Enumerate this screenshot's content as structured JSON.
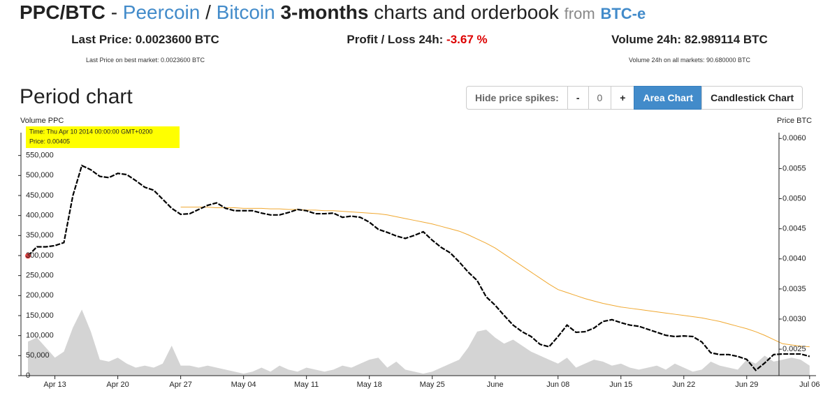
{
  "header": {
    "pair": "PPC/BTC",
    "sep1": "-",
    "coin": "Peercoin",
    "sep2": "/",
    "base": "Bitcoin",
    "period": "3-months",
    "rest": "charts and orderbook",
    "from": "from",
    "exchange": "BTC-e"
  },
  "stats": [
    {
      "label": "Last Price:",
      "value": "0.0023600 BTC",
      "note": "Last Price on best market: 0.0023600 BTC"
    },
    {
      "label": "Profit / Loss 24h:",
      "value": "-3.67 %"
    },
    {
      "label": "Volume 24h:",
      "value": "82.989114 BTC",
      "note": "Volume 24h on all markets: 90.680000 BTC"
    }
  ],
  "section_title": "Period chart",
  "controls": {
    "spikes_label": "Hide price spikes:",
    "minus": "-",
    "spikes_value": "0",
    "plus": "+",
    "area": "Area Chart",
    "candle": "Candlestick Chart"
  },
  "chart_data": {
    "type": "area",
    "y_label": "Volume PPC",
    "y2_label": "Price BTC",
    "tooltip": {
      "time": "Time: Thu Apr 10 2014 00:00:00 GMT+0200",
      "price": "Price: 0.00405"
    },
    "x": [
      "Apr 10",
      "Apr 11",
      "Apr 12",
      "Apr 13",
      "Apr 14",
      "Apr 15",
      "Apr 16",
      "Apr 17",
      "Apr 18",
      "Apr 19",
      "Apr 20",
      "Apr 21",
      "Apr 22",
      "Apr 23",
      "Apr 24",
      "Apr 25",
      "Apr 26",
      "Apr 27",
      "Apr 28",
      "Apr 29",
      "Apr 30",
      "May 01",
      "May 02",
      "May 03",
      "May 04",
      "May 05",
      "May 06",
      "May 07",
      "May 08",
      "May 09",
      "May 10",
      "May 11",
      "May 12",
      "May 13",
      "May 14",
      "May 15",
      "May 16",
      "May 17",
      "May 18",
      "May 19",
      "May 20",
      "May 21",
      "May 22",
      "May 23",
      "May 24",
      "May 25",
      "May 26",
      "May 27",
      "May 28",
      "May 29",
      "May 30",
      "May 31",
      "Jun 01",
      "Jun 02",
      "Jun 03",
      "Jun 04",
      "Jun 05",
      "Jun 06",
      "Jun 07",
      "Jun 08",
      "Jun 09",
      "Jun 10",
      "Jun 11",
      "Jun 12",
      "Jun 13",
      "Jun 14",
      "Jun 15",
      "Jun 16",
      "Jun 17",
      "Jun 18",
      "Jun 19",
      "Jun 20",
      "Jun 21",
      "Jun 22",
      "Jun 23",
      "Jun 24",
      "Jun 25",
      "Jun 26",
      "Jun 27",
      "Jun 28",
      "Jun 29",
      "Jun 30",
      "Jul 01",
      "Jul 02",
      "Jul 03",
      "Jul 04",
      "Jul 05",
      "Jul 06"
    ],
    "xticks": [
      "Apr 13",
      "Apr 20",
      "Apr 27",
      "May 04",
      "May 11",
      "May 18",
      "May 25",
      {
        "value": "Jun 01",
        "label": "June"
      },
      "Jun 08",
      "Jun 15",
      "Jun 22",
      "Jun 29",
      "Jul 06"
    ],
    "ylim": [
      0,
      600000
    ],
    "yticks": [
      0,
      {
        "value": 50000,
        "label": "50,000"
      },
      {
        "value": 100000,
        "label": "100,000"
      },
      {
        "value": 150000,
        "label": "150,000"
      },
      {
        "value": 200000,
        "label": "200,000"
      },
      {
        "value": 250000,
        "label": "250,000"
      },
      {
        "value": 300000,
        "label": "300,000"
      },
      {
        "value": 350000,
        "label": "350,000"
      },
      {
        "value": 400000,
        "label": "400,000"
      },
      {
        "value": 450000,
        "label": "450,000"
      },
      {
        "value": 500000,
        "label": "500,000"
      },
      {
        "value": 550000,
        "label": "550,000"
      }
    ],
    "y2lim": [
      0.00206,
      0.00605
    ],
    "y2ticks": [
      0.0025,
      {
        "value": 0.003,
        "label": "0.0030"
      },
      0.0035,
      {
        "value": 0.004,
        "label": "0.0040"
      },
      0.0045,
      {
        "value": 0.005,
        "label": "0.0050"
      },
      0.0055,
      {
        "value": 0.006,
        "label": "0.0060"
      }
    ],
    "series": [
      {
        "name": "Volume",
        "kind": "area",
        "color": "#d4d4d4",
        "values": [
          85000,
          95000,
          70000,
          45000,
          60000,
          120000,
          165000,
          110000,
          40000,
          35000,
          45000,
          30000,
          20000,
          25000,
          20000,
          30000,
          75000,
          25000,
          25000,
          20000,
          25000,
          20000,
          15000,
          10000,
          5000,
          10000,
          20000,
          10000,
          25000,
          15000,
          10000,
          20000,
          15000,
          10000,
          15000,
          25000,
          20000,
          30000,
          40000,
          45000,
          20000,
          35000,
          15000,
          10000,
          5000,
          10000,
          20000,
          30000,
          40000,
          70000,
          110000,
          115000,
          95000,
          80000,
          90000,
          75000,
          60000,
          50000,
          40000,
          30000,
          45000,
          20000,
          30000,
          40000,
          35000,
          25000,
          30000,
          20000,
          15000,
          20000,
          25000,
          15000,
          30000,
          20000,
          10000,
          15000,
          35000,
          25000,
          20000,
          15000,
          40000,
          30000,
          50000,
          35000,
          40000,
          45000,
          40000,
          25000
        ]
      },
      {
        "name": "Moving average",
        "kind": "line",
        "axis": "y2",
        "color": "#f0a830",
        "values": [
          null,
          null,
          null,
          null,
          null,
          null,
          null,
          null,
          null,
          null,
          null,
          null,
          null,
          null,
          null,
          null,
          null,
          0.00486,
          0.00486,
          0.00486,
          0.00486,
          0.00485,
          0.00485,
          0.00485,
          0.00484,
          0.00484,
          0.00484,
          0.00483,
          0.00483,
          0.00482,
          0.00482,
          0.00481,
          0.00481,
          0.0048,
          0.0048,
          0.00479,
          0.00478,
          0.00477,
          0.00476,
          0.00475,
          0.00473,
          0.0047,
          0.00467,
          0.00464,
          0.00461,
          0.00458,
          0.00454,
          0.0045,
          0.00446,
          0.0044,
          0.00433,
          0.00426,
          0.00418,
          0.00408,
          0.00398,
          0.00388,
          0.00378,
          0.00368,
          0.00358,
          0.00349,
          0.00344,
          0.00339,
          0.00334,
          0.0033,
          0.00326,
          0.00323,
          0.0032,
          0.00318,
          0.00316,
          0.00314,
          0.00312,
          0.0031,
          0.00308,
          0.00306,
          0.00304,
          0.00302,
          0.00299,
          0.00296,
          0.00292,
          0.00288,
          0.00284,
          0.00279,
          0.00273,
          0.00266,
          0.00259,
          0.00257,
          0.00255,
          0.00254
        ]
      },
      {
        "name": "Price",
        "kind": "line",
        "axis": "y2",
        "color": "#000000",
        "values": [
          0.00405,
          0.0042,
          0.0042,
          0.00422,
          0.00427,
          0.00505,
          0.00555,
          0.00548,
          0.00537,
          0.00535,
          0.00542,
          0.0054,
          0.0053,
          0.00519,
          0.00514,
          0.00499,
          0.00484,
          0.00474,
          0.00475,
          0.00482,
          0.00489,
          0.00493,
          0.00484,
          0.0048,
          0.0048,
          0.0048,
          0.00476,
          0.00473,
          0.00473,
          0.00477,
          0.00482,
          0.0048,
          0.00475,
          0.00475,
          0.00476,
          0.00469,
          0.00471,
          0.00469,
          0.00461,
          0.00449,
          0.00444,
          0.00438,
          0.00434,
          0.00439,
          0.00445,
          0.00431,
          0.00419,
          0.0041,
          0.00395,
          0.00378,
          0.00364,
          0.00337,
          0.00323,
          0.00306,
          0.0029,
          0.00279,
          0.00271,
          0.00258,
          0.00254,
          0.00271,
          0.0029,
          0.00278,
          0.00279,
          0.00285,
          0.00296,
          0.00299,
          0.00294,
          0.0029,
          0.00288,
          0.00283,
          0.00278,
          0.00273,
          0.00271,
          0.00272,
          0.00271,
          0.00262,
          0.00244,
          0.00241,
          0.00241,
          0.00238,
          0.00233,
          0.00215,
          0.00227,
          0.00241,
          0.00242,
          0.00242,
          0.00242,
          0.00238
        ]
      }
    ]
  }
}
